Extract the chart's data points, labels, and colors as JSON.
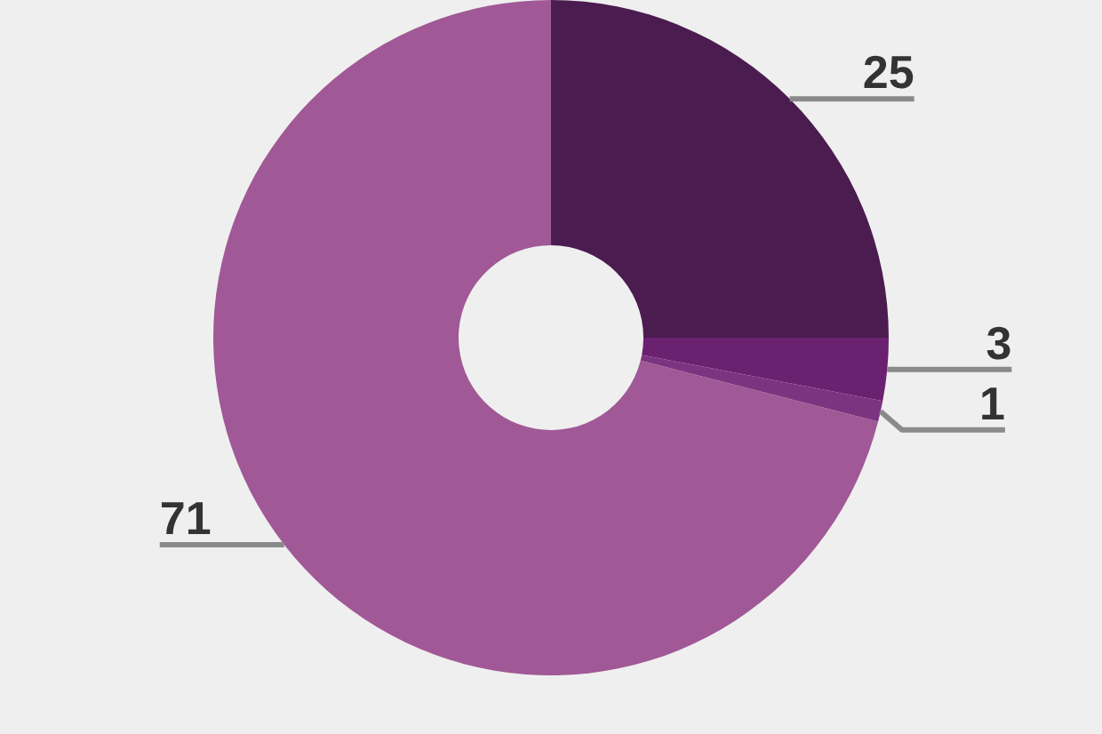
{
  "chart_data": {
    "type": "donut",
    "categories": [
      null,
      null,
      null,
      null
    ],
    "values": [
      25,
      3,
      1,
      71
    ],
    "colors": [
      "#4b1c4f",
      "#6a2170",
      "#7d3480",
      "#a05996"
    ],
    "data_labels": true
  }
}
